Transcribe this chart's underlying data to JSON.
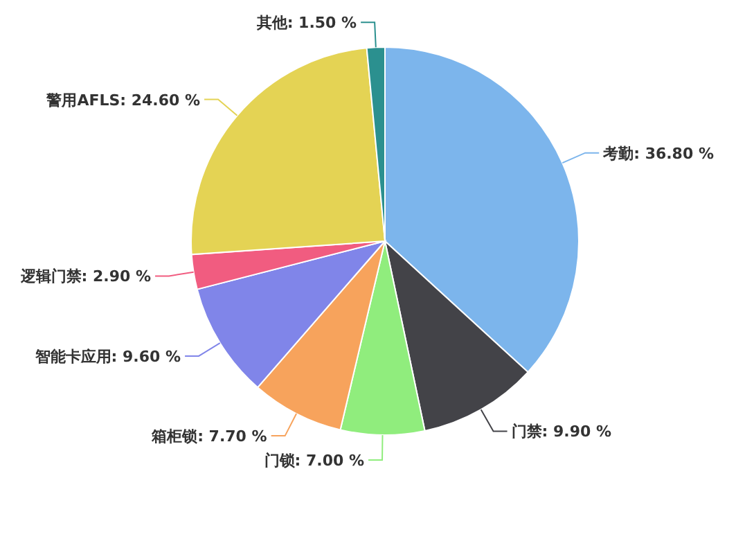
{
  "chart_data": {
    "type": "pie",
    "categories": [
      "考勤",
      "门禁",
      "门锁",
      "箱柜锁",
      "智能卡应用",
      "逻辑门禁",
      "警用AFLS",
      "其他"
    ],
    "values": [
      36.8,
      9.9,
      7.0,
      7.7,
      9.6,
      2.9,
      24.6,
      1.5
    ],
    "value_labels": [
      "36.80 %",
      "9.90 %",
      "7.00 %",
      "7.70 %",
      "9.60 %",
      "2.90 %",
      "24.60 %",
      "1.50 %"
    ],
    "colors": [
      "#7cb5ec",
      "#434348",
      "#90ed7d",
      "#f7a35c",
      "#8085e9",
      "#f15c80",
      "#e4d354",
      "#2b908f"
    ]
  }
}
